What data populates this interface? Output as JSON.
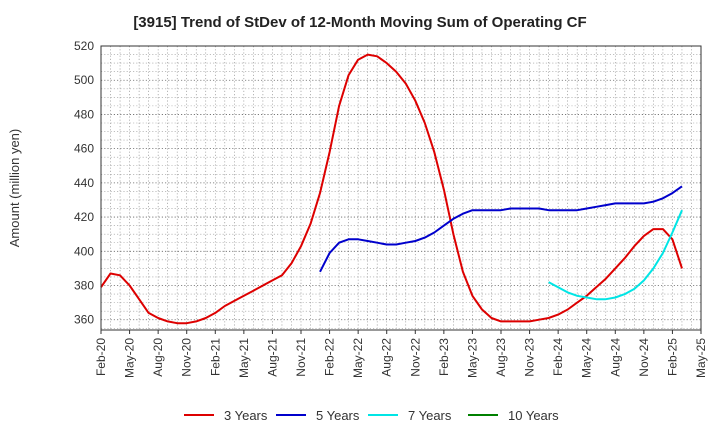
{
  "chart_data": {
    "type": "line",
    "title": "[3915]  Trend of StDev of 12-Month Moving Sum of Operating CF",
    "xlabel": "",
    "ylabel": "Amount (million yen)",
    "ylim": [
      354,
      520
    ],
    "yticks": [
      360,
      380,
      400,
      420,
      440,
      460,
      480,
      500,
      520
    ],
    "x_tick_labels": [
      "Feb-20",
      "May-20",
      "Aug-20",
      "Nov-20",
      "Feb-21",
      "May-21",
      "Aug-21",
      "Nov-21",
      "Feb-22",
      "May-22",
      "Aug-22",
      "Nov-22",
      "Feb-23",
      "May-23",
      "Aug-23",
      "Nov-23",
      "Feb-24",
      "May-24",
      "Aug-24",
      "Nov-24",
      "Feb-25",
      "May-25"
    ],
    "x_range_months": [
      "2020-02",
      "2025-05"
    ],
    "grid": true,
    "legend_position": "bottom",
    "series": [
      {
        "name": "3 Years",
        "color": "#dd0000",
        "points": [
          [
            "2020-02",
            379
          ],
          [
            "2020-03",
            387
          ],
          [
            "2020-04",
            386
          ],
          [
            "2020-05",
            380
          ],
          [
            "2020-06",
            372
          ],
          [
            "2020-07",
            364
          ],
          [
            "2020-08",
            361
          ],
          [
            "2020-09",
            359
          ],
          [
            "2020-10",
            358
          ],
          [
            "2020-11",
            358
          ],
          [
            "2020-12",
            359
          ],
          [
            "2021-01",
            361
          ],
          [
            "2021-02",
            364
          ],
          [
            "2021-03",
            368
          ],
          [
            "2021-04",
            371
          ],
          [
            "2021-05",
            374
          ],
          [
            "2021-06",
            377
          ],
          [
            "2021-07",
            380
          ],
          [
            "2021-08",
            383
          ],
          [
            "2021-09",
            386
          ],
          [
            "2021-10",
            393
          ],
          [
            "2021-11",
            403
          ],
          [
            "2021-12",
            416
          ],
          [
            "2022-01",
            434
          ],
          [
            "2022-02",
            458
          ],
          [
            "2022-03",
            485
          ],
          [
            "2022-04",
            503
          ],
          [
            "2022-05",
            512
          ],
          [
            "2022-06",
            515
          ],
          [
            "2022-07",
            514
          ],
          [
            "2022-08",
            510
          ],
          [
            "2022-09",
            505
          ],
          [
            "2022-10",
            498
          ],
          [
            "2022-11",
            488
          ],
          [
            "2022-12",
            475
          ],
          [
            "2023-01",
            458
          ],
          [
            "2023-02",
            436
          ],
          [
            "2023-03",
            410
          ],
          [
            "2023-04",
            388
          ],
          [
            "2023-05",
            374
          ],
          [
            "2023-06",
            366
          ],
          [
            "2023-07",
            361
          ],
          [
            "2023-08",
            359
          ],
          [
            "2023-09",
            359
          ],
          [
            "2023-10",
            359
          ],
          [
            "2023-11",
            359
          ],
          [
            "2023-12",
            360
          ],
          [
            "2024-01",
            361
          ],
          [
            "2024-02",
            363
          ],
          [
            "2024-03",
            366
          ],
          [
            "2024-04",
            370
          ],
          [
            "2024-05",
            374
          ],
          [
            "2024-06",
            379
          ],
          [
            "2024-07",
            384
          ],
          [
            "2024-08",
            390
          ],
          [
            "2024-09",
            396
          ],
          [
            "2024-10",
            403
          ],
          [
            "2024-11",
            409
          ],
          [
            "2024-12",
            413
          ],
          [
            "2025-01",
            413
          ],
          [
            "2025-02",
            407
          ],
          [
            "2025-03",
            390
          ]
        ]
      },
      {
        "name": "5 Years",
        "color": "#0000cc",
        "points": [
          [
            "2022-01",
            388
          ],
          [
            "2022-02",
            399
          ],
          [
            "2022-03",
            405
          ],
          [
            "2022-04",
            407
          ],
          [
            "2022-05",
            407
          ],
          [
            "2022-06",
            406
          ],
          [
            "2022-07",
            405
          ],
          [
            "2022-08",
            404
          ],
          [
            "2022-09",
            404
          ],
          [
            "2022-10",
            405
          ],
          [
            "2022-11",
            406
          ],
          [
            "2022-12",
            408
          ],
          [
            "2023-01",
            411
          ],
          [
            "2023-02",
            415
          ],
          [
            "2023-03",
            419
          ],
          [
            "2023-04",
            422
          ],
          [
            "2023-05",
            424
          ],
          [
            "2023-06",
            424
          ],
          [
            "2023-07",
            424
          ],
          [
            "2023-08",
            424
          ],
          [
            "2023-09",
            425
          ],
          [
            "2023-10",
            425
          ],
          [
            "2023-11",
            425
          ],
          [
            "2023-12",
            425
          ],
          [
            "2024-01",
            424
          ],
          [
            "2024-02",
            424
          ],
          [
            "2024-03",
            424
          ],
          [
            "2024-04",
            424
          ],
          [
            "2024-05",
            425
          ],
          [
            "2024-06",
            426
          ],
          [
            "2024-07",
            427
          ],
          [
            "2024-08",
            428
          ],
          [
            "2024-09",
            428
          ],
          [
            "2024-10",
            428
          ],
          [
            "2024-11",
            428
          ],
          [
            "2024-12",
            429
          ],
          [
            "2025-01",
            431
          ],
          [
            "2025-02",
            434
          ],
          [
            "2025-03",
            438
          ]
        ]
      },
      {
        "name": "7 Years",
        "color": "#00e5e5",
        "points": [
          [
            "2024-01",
            382
          ],
          [
            "2024-02",
            379
          ],
          [
            "2024-03",
            376
          ],
          [
            "2024-04",
            374
          ],
          [
            "2024-05",
            373
          ],
          [
            "2024-06",
            372
          ],
          [
            "2024-07",
            372
          ],
          [
            "2024-08",
            373
          ],
          [
            "2024-09",
            375
          ],
          [
            "2024-10",
            378
          ],
          [
            "2024-11",
            383
          ],
          [
            "2024-12",
            390
          ],
          [
            "2025-01",
            399
          ],
          [
            "2025-02",
            411
          ],
          [
            "2025-03",
            424
          ]
        ]
      },
      {
        "name": "10 Years",
        "color": "#008000",
        "points": []
      }
    ]
  }
}
